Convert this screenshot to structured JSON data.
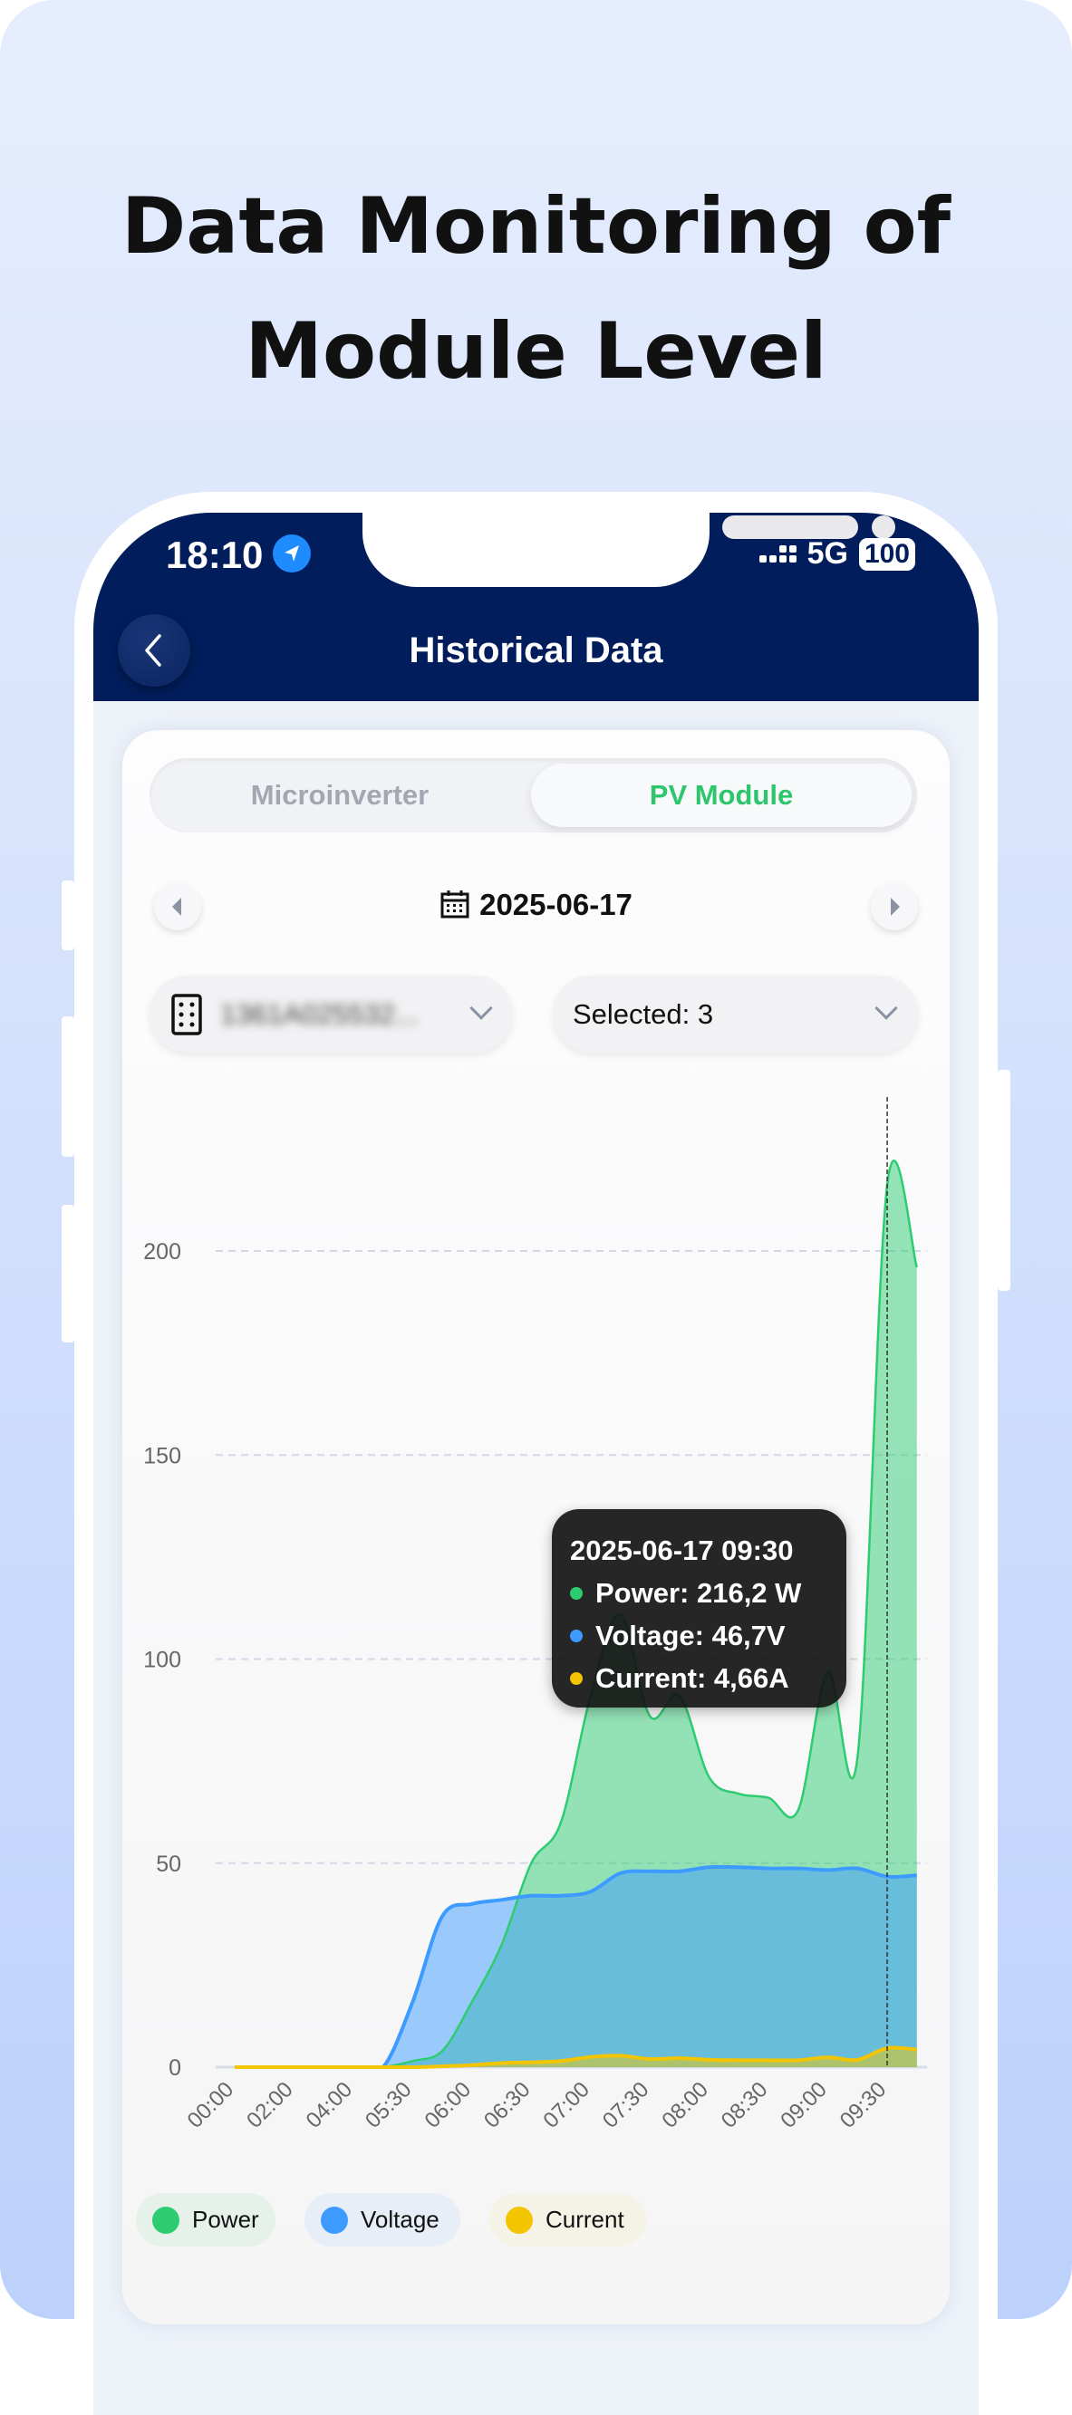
{
  "headline": {
    "line1": "Data Monitoring of",
    "line2": "Module Level"
  },
  "status_bar": {
    "time": "18:10",
    "network": "5G",
    "battery": "100",
    "icons": [
      "location-arrow-icon",
      "signal-icon",
      "battery-icon"
    ]
  },
  "header": {
    "title": "Historical Data",
    "back_icon": "chevron-left-icon"
  },
  "tabs": [
    {
      "label": "Microinverter",
      "active": false
    },
    {
      "label": "PV Module",
      "active": true
    }
  ],
  "date_nav": {
    "date": "2025-06-17",
    "icon": "calendar-icon"
  },
  "device_select": {
    "value": "1361A025532...",
    "blurred": true
  },
  "module_select": {
    "value": "Selected: 3"
  },
  "colors": {
    "power": "#2ecc71",
    "voltage": "#3d9bff",
    "current": "#f2c500",
    "header": "#021d5b",
    "accent": "#2ec66c"
  },
  "tooltip": {
    "title": "2025-06-17 09:30",
    "rows": [
      "Power: 216,2 W",
      "Voltage: 46,7V",
      "Current: 4,66A"
    ]
  },
  "legend": [
    {
      "label": "Power"
    },
    {
      "label": "Voltage"
    },
    {
      "label": "Current"
    }
  ],
  "chart_data": {
    "type": "area",
    "x": [
      "00:00",
      "01:00",
      "02:00",
      "03:00",
      "04:00",
      "05:00",
      "05:30",
      "05:45",
      "06:00",
      "06:15",
      "06:30",
      "06:45",
      "07:00",
      "07:15",
      "07:30",
      "07:45",
      "08:00",
      "08:15",
      "08:30",
      "08:45",
      "09:00",
      "09:15",
      "09:30",
      "09:45"
    ],
    "tick_labels": [
      "00:00",
      "02:00",
      "04:00",
      "05:30",
      "06:00",
      "06:30",
      "07:00",
      "07:30",
      "08:00",
      "08:30",
      "09:00",
      "09:30"
    ],
    "y_ticks": [
      0,
      50,
      100,
      150,
      200
    ],
    "ylim": [
      0,
      200
    ],
    "grid": true,
    "legend_position": "bottom-left",
    "highlight_x": "09:30",
    "series": [
      {
        "name": "Power",
        "values": [
          0,
          0,
          0,
          0,
          0,
          0,
          1.5,
          4,
          16,
          30,
          50,
          60,
          91,
          111,
          86,
          91,
          71,
          67,
          66,
          63,
          97,
          76,
          216.2,
          196
        ]
      },
      {
        "name": "Voltage",
        "values": [
          0,
          0,
          0,
          0,
          0,
          0,
          16,
          37,
          40,
          41,
          42,
          42,
          43,
          47.5,
          48,
          48,
          49,
          49,
          48.7,
          48.7,
          48.3,
          48.7,
          46.7,
          47
        ]
      },
      {
        "name": "Current",
        "values": [
          0,
          0,
          0,
          0,
          0,
          0,
          0,
          0.2,
          0.5,
          1,
          1.2,
          1.5,
          2.5,
          2.8,
          2,
          2.2,
          1.8,
          1.7,
          1.7,
          1.7,
          2.4,
          1.8,
          4.66,
          4.3
        ]
      }
    ]
  }
}
